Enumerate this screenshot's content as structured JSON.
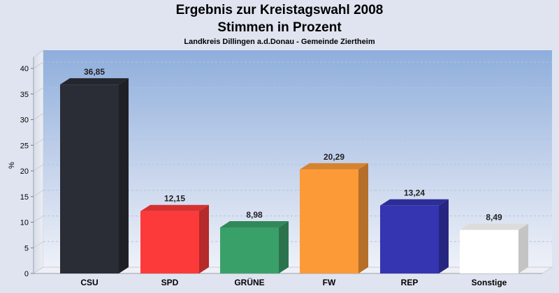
{
  "header": {
    "title_line1": "Ergebnis zur Kreistagswahl 2008",
    "title_line2": "Stimmen in Prozent",
    "subtitle": "Landkreis Dillingen a.d.Donau - Gemeinde Ziertheim"
  },
  "chart_data": {
    "type": "bar",
    "title": "Ergebnis zur Kreistagswahl 2008 Stimmen in Prozent",
    "subtitle": "Landkreis Dillingen a.d.Donau - Gemeinde Ziertheim",
    "xlabel": "",
    "ylabel": "%",
    "ylim": [
      0,
      40
    ],
    "yticks": [
      0,
      5,
      10,
      15,
      20,
      25,
      30,
      35,
      40
    ],
    "grid": true,
    "categories": [
      "CSU",
      "SPD",
      "GRÜNE",
      "FW",
      "REP",
      "Sonstige"
    ],
    "values": [
      36.85,
      12.15,
      8.98,
      20.29,
      13.24,
      8.49
    ],
    "value_labels": [
      "36,85",
      "12,15",
      "8,98",
      "20,29",
      "13,24",
      "8,49"
    ],
    "colors": [
      "#2a2d35",
      "#fc3a3a",
      "#3aa06a",
      "#fc9a38",
      "#3535b2",
      "#ffffff"
    ]
  }
}
